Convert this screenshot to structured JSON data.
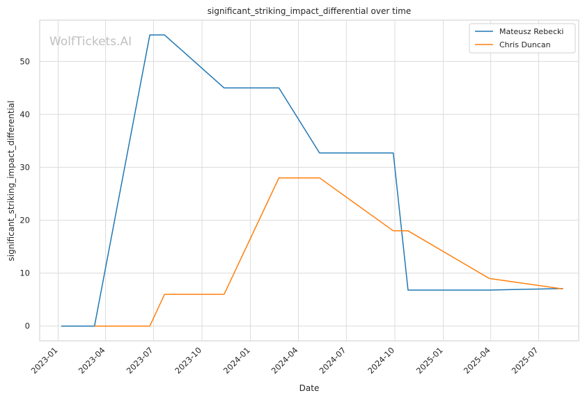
{
  "chart_data": {
    "type": "line",
    "title": "significant_striking_impact_differential over time",
    "xlabel": "Date",
    "ylabel": "significant_striking_impact_differential",
    "watermark": "WolfTickets.AI",
    "xlim": [
      "2022-11-27",
      "2025-09-15"
    ],
    "ylim": [
      -2.8,
      57.8
    ],
    "x_ticks": [
      "2023-01",
      "2023-04",
      "2023-07",
      "2023-10",
      "2024-01",
      "2024-04",
      "2024-07",
      "2024-10",
      "2025-01",
      "2025-04",
      "2025-07"
    ],
    "y_ticks": [
      0,
      10,
      20,
      30,
      40,
      50
    ],
    "grid": true,
    "legend_position": "top-right",
    "series": [
      {
        "name": "Mateusz Rebecki",
        "color": "#1f77b4",
        "points": [
          {
            "x": "2023-01-07",
            "y": 0
          },
          {
            "x": "2023-03-11",
            "y": 0
          },
          {
            "x": "2023-06-24",
            "y": 55
          },
          {
            "x": "2023-07-22",
            "y": 55
          },
          {
            "x": "2023-11-12",
            "y": 45
          },
          {
            "x": "2024-02-24",
            "y": 45
          },
          {
            "x": "2024-05-11",
            "y": 32.7
          },
          {
            "x": "2024-09-28",
            "y": 32.7
          },
          {
            "x": "2024-10-26",
            "y": 6.8
          },
          {
            "x": "2025-03-29",
            "y": 6.8
          },
          {
            "x": "2025-08-16",
            "y": 7.1
          }
        ]
      },
      {
        "name": "Chris Duncan",
        "color": "#ff7f0e",
        "points": [
          {
            "x": "2023-03-11",
            "y": 0
          },
          {
            "x": "2023-06-24",
            "y": 0
          },
          {
            "x": "2023-07-22",
            "y": 6
          },
          {
            "x": "2023-11-12",
            "y": 6
          },
          {
            "x": "2024-02-24",
            "y": 28
          },
          {
            "x": "2024-05-11",
            "y": 28
          },
          {
            "x": "2024-09-28",
            "y": 18
          },
          {
            "x": "2024-10-26",
            "y": 18
          },
          {
            "x": "2025-03-29",
            "y": 9
          },
          {
            "x": "2025-08-16",
            "y": 7
          }
        ]
      }
    ]
  }
}
